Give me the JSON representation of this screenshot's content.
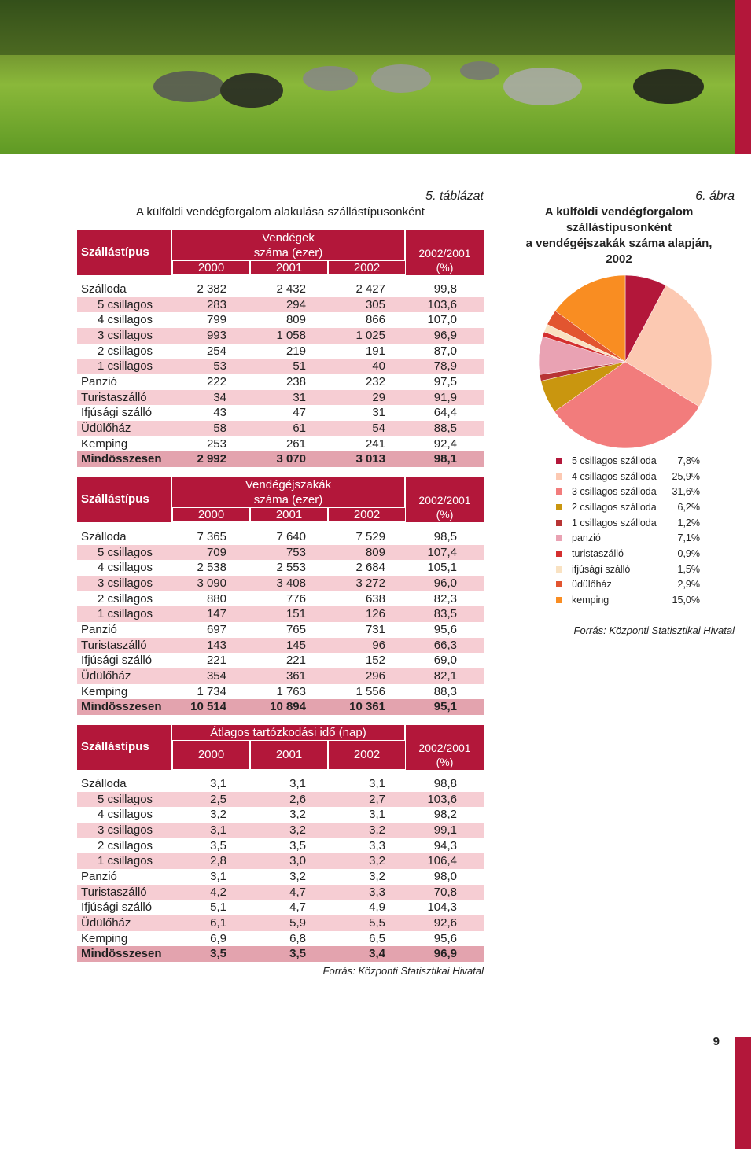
{
  "caption": {
    "number": "5. táblázat",
    "title": "A külföldi vendégforgalom alakulása szállástípusonként"
  },
  "tables": [
    {
      "row_header": "Szállástípus",
      "group_header": [
        "Vendégek",
        "száma (ezer)"
      ],
      "columns": [
        "2000",
        "2001",
        "2002"
      ],
      "ratio_header": [
        "2002/2001",
        "(%)"
      ],
      "rows": [
        [
          "Szálloda",
          "2 382",
          "2 432",
          "2 427",
          "99,8"
        ],
        [
          "5 csillagos",
          "283",
          "294",
          "305",
          "103,6"
        ],
        [
          "4 csillagos",
          "799",
          "809",
          "866",
          "107,0"
        ],
        [
          "3 csillagos",
          "993",
          "1 058",
          "1 025",
          "96,9"
        ],
        [
          "2 csillagos",
          "254",
          "219",
          "191",
          "87,0"
        ],
        [
          "1 csillagos",
          "53",
          "51",
          "40",
          "78,9"
        ],
        [
          "Panzió",
          "222",
          "238",
          "232",
          "97,5"
        ],
        [
          "Turistaszálló",
          "34",
          "31",
          "29",
          "91,9"
        ],
        [
          "Ifjúsági szálló",
          "43",
          "47",
          "31",
          "64,4"
        ],
        [
          "Üdülőház",
          "58",
          "61",
          "54",
          "88,5"
        ],
        [
          "Kemping",
          "253",
          "261",
          "241",
          "92,4"
        ],
        [
          "Mindösszesen",
          "2 992",
          "3 070",
          "3 013",
          "98,1"
        ]
      ]
    },
    {
      "row_header": "Szállástípus",
      "group_header": [
        "Vendégéjszakák",
        "száma (ezer)"
      ],
      "columns": [
        "2000",
        "2001",
        "2002"
      ],
      "ratio_header": [
        "2002/2001",
        "(%)"
      ],
      "rows": [
        [
          "Szálloda",
          "7 365",
          "7 640",
          "7 529",
          "98,5"
        ],
        [
          "5 csillagos",
          "709",
          "753",
          "809",
          "107,4"
        ],
        [
          "4 csillagos",
          "2 538",
          "2 553",
          "2 684",
          "105,1"
        ],
        [
          "3 csillagos",
          "3 090",
          "3 408",
          "3 272",
          "96,0"
        ],
        [
          "2 csillagos",
          "880",
          "776",
          "638",
          "82,3"
        ],
        [
          "1 csillagos",
          "147",
          "151",
          "126",
          "83,5"
        ],
        [
          "Panzió",
          "697",
          "765",
          "731",
          "95,6"
        ],
        [
          "Turistaszálló",
          "143",
          "145",
          "96",
          "66,3"
        ],
        [
          "Ifjúsági szálló",
          "221",
          "221",
          "152",
          "69,0"
        ],
        [
          "Üdülőház",
          "354",
          "361",
          "296",
          "82,1"
        ],
        [
          "Kemping",
          "1 734",
          "1 763",
          "1 556",
          "88,3"
        ],
        [
          "Mindösszesen",
          "10 514",
          "10 894",
          "10 361",
          "95,1"
        ]
      ]
    },
    {
      "row_header": "Szállástípus",
      "group_header": [
        "Átlagos tartózkodási idő (nap)"
      ],
      "columns": [
        "2000",
        "2001",
        "2002"
      ],
      "ratio_header": [
        "2002/2001",
        "(%)"
      ],
      "rows": [
        [
          "Szálloda",
          "3,1",
          "3,1",
          "3,1",
          "98,8"
        ],
        [
          "5 csillagos",
          "2,5",
          "2,6",
          "2,7",
          "103,6"
        ],
        [
          "4 csillagos",
          "3,2",
          "3,2",
          "3,1",
          "98,2"
        ],
        [
          "3 csillagos",
          "3,1",
          "3,2",
          "3,2",
          "99,1"
        ],
        [
          "2 csillagos",
          "3,5",
          "3,5",
          "3,3",
          "94,3"
        ],
        [
          "1 csillagos",
          "2,8",
          "3,0",
          "3,2",
          "106,4"
        ],
        [
          "Panzió",
          "3,1",
          "3,2",
          "3,2",
          "98,0"
        ],
        [
          "Turistaszálló",
          "4,2",
          "4,7",
          "3,3",
          "70,8"
        ],
        [
          "Ifjúsági szálló",
          "5,1",
          "4,7",
          "4,9",
          "104,3"
        ],
        [
          "Üdülőház",
          "6,1",
          "5,9",
          "5,5",
          "92,6"
        ],
        [
          "Kemping",
          "6,9",
          "6,8",
          "6,5",
          "95,6"
        ],
        [
          "Mindösszesen",
          "3,5",
          "3,5",
          "3,4",
          "96,9"
        ]
      ]
    }
  ],
  "source": "Forrás: Központi Statisztikai Hivatal",
  "chart_data": {
    "type": "pie",
    "number": "6. ábra",
    "title": [
      "A külföldi vendégforgalom",
      "szállástípusonként",
      "a vendégéjszakák száma alapján,",
      "2002"
    ],
    "categories": [
      "5 csillagos szálloda",
      "4 csillagos szálloda",
      "3 csillagos szálloda",
      "2 csillagos szálloda",
      "1 csillagos szálloda",
      "panzió",
      "turistaszálló",
      "ifjúsági szálló",
      "üdülőház",
      "kemping"
    ],
    "values": [
      7.8,
      25.9,
      31.6,
      6.2,
      1.2,
      7.1,
      0.9,
      1.5,
      2.9,
      15.0
    ],
    "value_labels": [
      "7,8%",
      "25,9%",
      "31,6%",
      "6,2%",
      "1,2%",
      "7,1%",
      "0,9%",
      "1,5%",
      "2,9%",
      "15,0%"
    ],
    "colors": [
      "#b3173a",
      "#fcc9b2",
      "#f27c7c",
      "#c9960f",
      "#b83434",
      "#e9a2b3",
      "#d42f2f",
      "#f9e2c2",
      "#e25530",
      "#f98d22"
    ],
    "source": "Forrás: Központi Statisztikai Hivatal"
  },
  "page_number": "9"
}
